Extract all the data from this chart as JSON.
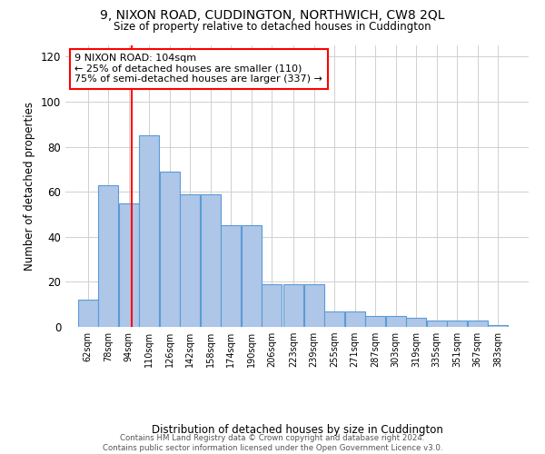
{
  "title": "9, NIXON ROAD, CUDDINGTON, NORTHWICH, CW8 2QL",
  "subtitle": "Size of property relative to detached houses in Cuddington",
  "xlabel": "Distribution of detached houses by size in Cuddington",
  "ylabel": "Number of detached properties",
  "bar_color": "#aec6e8",
  "bar_edge_color": "#5b9bd5",
  "background_color": "#ffffff",
  "grid_color": "#d0d0d0",
  "vline_x": 104,
  "vline_color": "red",
  "annotation_text": "9 NIXON ROAD: 104sqm\n← 25% of detached houses are smaller (110)\n75% of semi-detached houses are larger (337) →",
  "annotation_box_color": "white",
  "annotation_box_edge": "red",
  "categories": [
    "62sqm",
    "78sqm",
    "94sqm",
    "110sqm",
    "126sqm",
    "142sqm",
    "158sqm",
    "174sqm",
    "190sqm",
    "206sqm",
    "223sqm",
    "239sqm",
    "255sqm",
    "271sqm",
    "287sqm",
    "303sqm",
    "319sqm",
    "335sqm",
    "351sqm",
    "367sqm",
    "383sqm"
  ],
  "bin_edges": [
    62,
    78,
    94,
    110,
    126,
    142,
    158,
    174,
    190,
    206,
    223,
    239,
    255,
    271,
    287,
    303,
    319,
    335,
    351,
    367,
    383,
    399
  ],
  "values": [
    12,
    63,
    55,
    85,
    69,
    59,
    59,
    45,
    45,
    19,
    19,
    19,
    7,
    7,
    5,
    5,
    4,
    3,
    3,
    3,
    1
  ],
  "ylim": [
    0,
    125
  ],
  "yticks": [
    0,
    20,
    40,
    60,
    80,
    100,
    120
  ],
  "footer_text": "Contains HM Land Registry data © Crown copyright and database right 2024.\nContains public sector information licensed under the Open Government Licence v3.0."
}
